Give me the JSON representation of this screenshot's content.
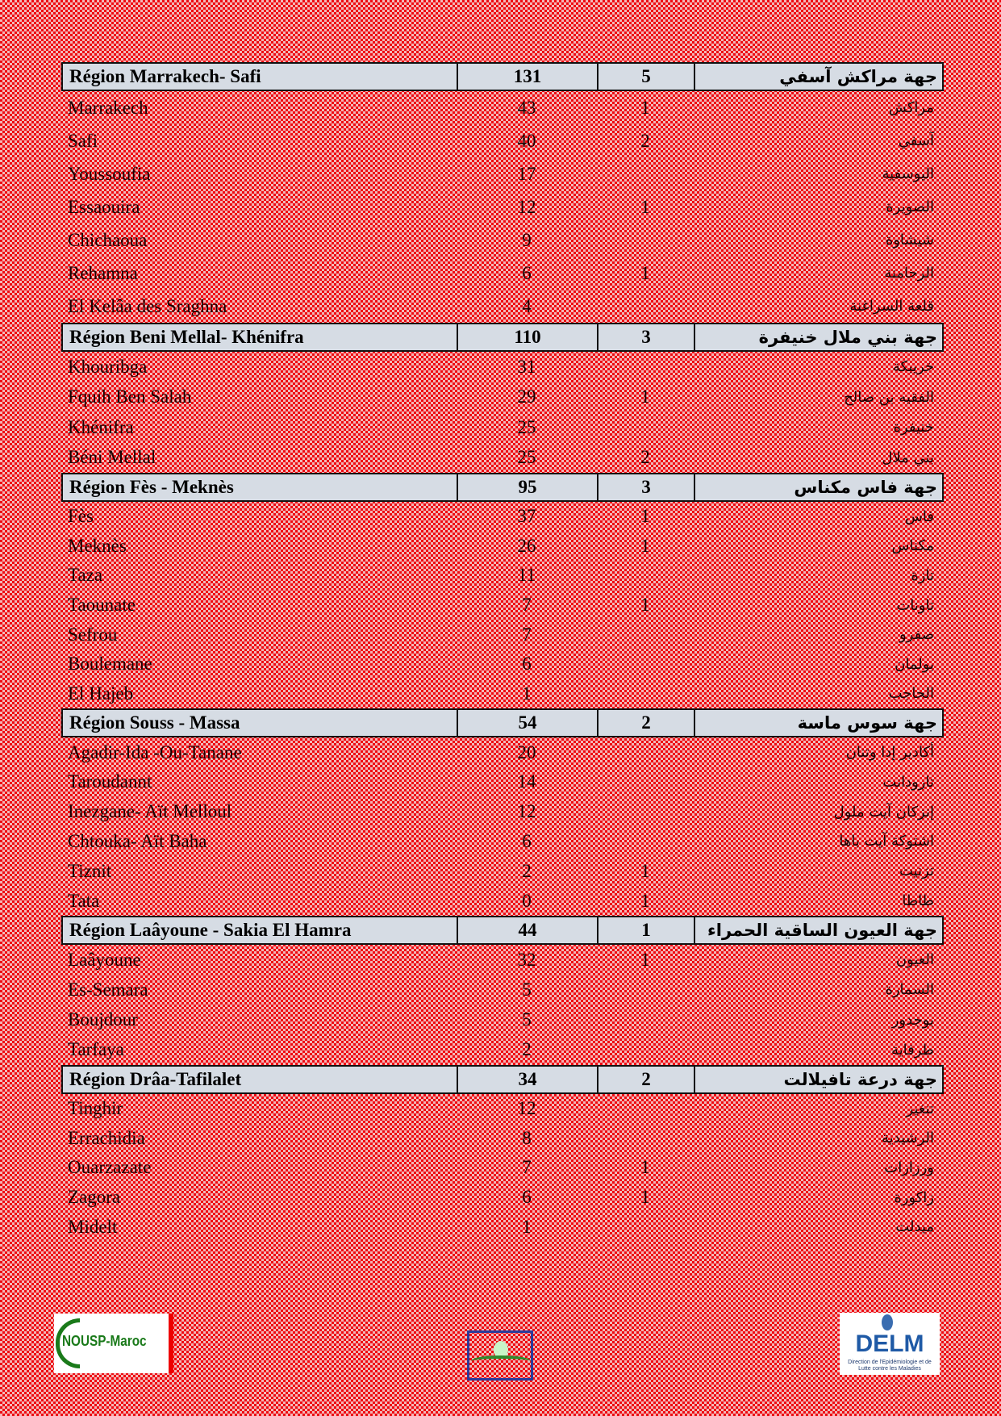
{
  "regions": [
    {
      "name_fr": "Région Marrakech- Safi",
      "cases": "131",
      "deaths": "5",
      "name_ar": "جهة مراكش آسفي",
      "rows": [
        {
          "fr": "Marrakech",
          "cases": "43",
          "deaths": "1",
          "ar": "مراكش"
        },
        {
          "fr": "Safi",
          "cases": "40",
          "deaths": "2",
          "ar": "آسفي"
        },
        {
          "fr": "Youssoufia",
          "cases": "17",
          "deaths": "",
          "ar": "اليوسفية"
        },
        {
          "fr": "Essaouira",
          "cases": "12",
          "deaths": "1",
          "ar": "الصويرة"
        },
        {
          "fr": "Chichaoua",
          "cases": "9",
          "deaths": "",
          "ar": "شيشاوة"
        },
        {
          "fr": "Rehamna",
          "cases": "6",
          "deaths": "1",
          "ar": "الرحامنة"
        },
        {
          "fr": "El Kelâa des  Sraghna",
          "cases": "4",
          "deaths": "",
          "ar": "قلعة السراغنة"
        }
      ]
    },
    {
      "name_fr": "Région Beni Mellal- Khénifra",
      "cases": "110",
      "deaths": "3",
      "name_ar": "جهة بني ملال خنيفرة",
      "rows": [
        {
          "fr": "Khouribga",
          "cases": "31",
          "deaths": "",
          "ar": "خريبكة"
        },
        {
          "fr": "Fquih Ben Salah",
          "cases": "29",
          "deaths": "1",
          "ar": "الفقيه بن صالح"
        },
        {
          "fr": "Khénifra",
          "cases": "25",
          "deaths": "",
          "ar": "خنيفرة"
        },
        {
          "fr": "Béni Mellal",
          "cases": "25",
          "deaths": "2",
          "ar": "بني ملال"
        }
      ]
    },
    {
      "name_fr": "Région Fès - Meknès",
      "cases": "95",
      "deaths": "3",
      "name_ar": "جهة فاس مكناس",
      "rows": [
        {
          "fr": "Fès",
          "cases": "37",
          "deaths": "1",
          "ar": "فاس"
        },
        {
          "fr": "Meknès",
          "cases": "26",
          "deaths": "1",
          "ar": "مكناس"
        },
        {
          "fr": "Taza",
          "cases": "11",
          "deaths": "",
          "ar": "تازة"
        },
        {
          "fr": "Taounate",
          "cases": "7",
          "deaths": "1",
          "ar": "تاونات"
        },
        {
          "fr": "Sefrou",
          "cases": "7",
          "deaths": "",
          "ar": "صفرو"
        },
        {
          "fr": "Boulemane",
          "cases": "6",
          "deaths": "",
          "ar": "بولمان"
        },
        {
          "fr": "El  Hajeb",
          "cases": "1",
          "deaths": "",
          "ar": "الحاجب"
        }
      ]
    },
    {
      "name_fr": "Région Souss - Massa",
      "cases": "54",
      "deaths": "2",
      "name_ar": "جهة سوس ماسة",
      "rows": [
        {
          "fr": "Agadir-Ida -Ou-Tanane",
          "cases": "20",
          "deaths": "",
          "ar": "أكادير إدا وتنان"
        },
        {
          "fr": "Taroudannt",
          "cases": "14",
          "deaths": "",
          "ar": "تارودانت"
        },
        {
          "fr": "Inezgane- Aït Melloul",
          "cases": "12",
          "deaths": "",
          "ar": "إنزكان آيت ملول"
        },
        {
          "fr": "Chtouka- Aït Baha",
          "cases": "6",
          "deaths": "",
          "ar": "اشتوكة آيت باها"
        },
        {
          "fr": "Tiznit",
          "cases": "2",
          "deaths": "1",
          "ar": "تزنيت"
        },
        {
          "fr": "Tata",
          "cases": "0",
          "deaths": "1",
          "ar": "طاطا"
        }
      ]
    },
    {
      "name_fr": "Région Laâyoune - Sakia El Hamra",
      "cases": "44",
      "deaths": "1",
      "name_ar": "جهة العيون الساقية الحمراء",
      "rows": [
        {
          "fr": "Laâyoune",
          "cases": "32",
          "deaths": "1",
          "ar": "العيون"
        },
        {
          "fr": "Es-Semara",
          "cases": "5",
          "deaths": "",
          "ar": "السمارة"
        },
        {
          "fr": "Boujdour",
          "cases": "5",
          "deaths": "",
          "ar": "بوجدور"
        },
        {
          "fr": "Tarfaya",
          "cases": "2",
          "deaths": "",
          "ar": "طرفاية"
        }
      ]
    },
    {
      "name_fr": "Région Drâa-Tafilalet",
      "cases": "34",
      "deaths": "2",
      "name_ar": "جهة درعة تافيلالت",
      "rows": [
        {
          "fr": "Tinghir",
          "cases": "12",
          "deaths": "",
          "ar": "تنغير"
        },
        {
          "fr": "Errachidia",
          "cases": "8",
          "deaths": "",
          "ar": "الرشيدية"
        },
        {
          "fr": "Ouarzazate",
          "cases": "7",
          "deaths": "1",
          "ar": "ورزازات"
        },
        {
          "fr": "Zagora",
          "cases": "6",
          "deaths": "1",
          "ar": "زاكورة"
        },
        {
          "fr": "Midelt",
          "cases": "1",
          "deaths": "",
          "ar": "ميدلت"
        }
      ]
    }
  ],
  "footer": {
    "logo_left": "NOUSP-Maroc",
    "logo_right": "DELM",
    "logo_right_sub": "Direction de l'Epidémiologie et de Lutte contre les Maladies"
  },
  "colors": {
    "header_bg": "#d6dce4",
    "background": "#e8141c"
  }
}
